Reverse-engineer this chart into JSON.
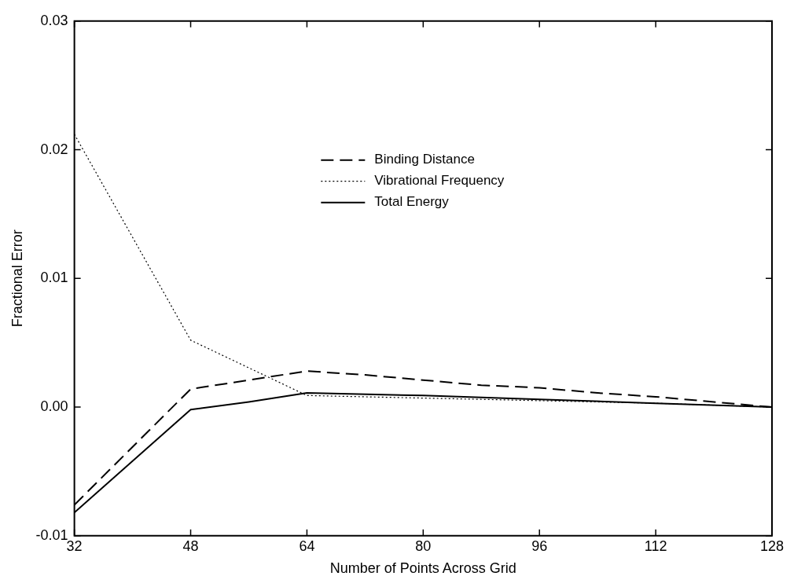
{
  "chart_data": {
    "type": "line",
    "xlabel": "Number of Points Across Grid",
    "ylabel": "Fractional Error",
    "xlim": [
      32,
      128
    ],
    "xticks": [
      32,
      48,
      64,
      80,
      96,
      112,
      128
    ],
    "ylim": [
      -0.01,
      0.03
    ],
    "yticks": [
      {
        "value": -0.01,
        "label": "-0.01"
      },
      {
        "value": 0,
        "label": "0.00"
      },
      {
        "value": 0.01,
        "label": "0.01"
      },
      {
        "value": 0.02,
        "label": "0.02"
      },
      {
        "value": 0.03,
        "label": "0.03"
      }
    ],
    "grid": false,
    "legend": "center",
    "marker": "none",
    "series": [
      {
        "name": "Binding Distance",
        "color": "#000000",
        "line_style": "dashed",
        "x": [
          32,
          48,
          64,
          72,
          80,
          88,
          96,
          104,
          112,
          120,
          128
        ],
        "values": [
          -0.0076,
          0.0014,
          0.0028,
          0.0025,
          0.0021,
          0.0017,
          0.0015,
          0.0011,
          0.0008,
          0.0004,
          0
        ]
      },
      {
        "name": "Vibrational Frequency",
        "color": "#000000",
        "line_style": "dotted",
        "x": [
          32,
          48,
          64,
          80,
          96,
          112,
          128
        ],
        "values": [
          0.0212,
          0.0052,
          0.0009,
          0.0007,
          0.0005,
          0.0003,
          0
        ]
      },
      {
        "name": "Total Energy",
        "color": "#000000",
        "line_style": "solid",
        "x": [
          32,
          48,
          56,
          64,
          80,
          96,
          112,
          128
        ],
        "values": [
          -0.0082,
          -0.0002,
          0.0004,
          0.0011,
          0.0009,
          0.0006,
          0.0003,
          0
        ]
      }
    ]
  }
}
